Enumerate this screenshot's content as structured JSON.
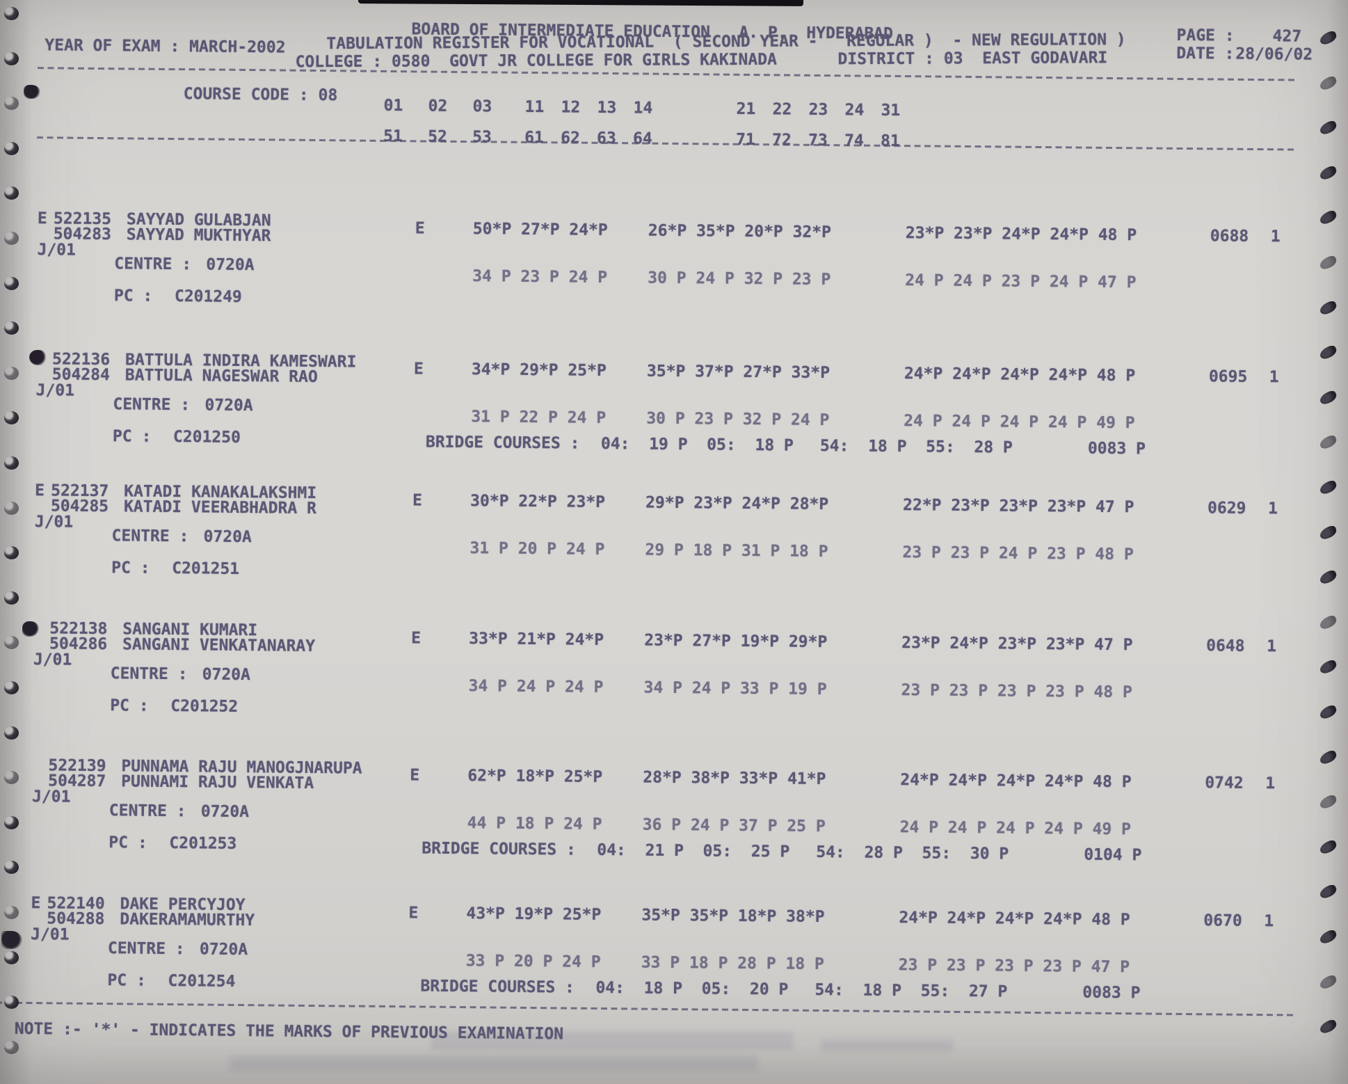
{
  "header": {
    "board_title": "BOARD OF INTERMEDIATE EDUCATION   A. P.  HYDERABAD",
    "page_label": "PAGE :",
    "page_value": "427",
    "year_line": "YEAR OF EXAM : MARCH-2002",
    "register_line": "TABULATION REGISTER FOR VOCATIONAL  ( SECOND YEAR -   REGULAR )  - NEW REGULATION )",
    "date_label": "DATE :",
    "date_value": "28/06/02",
    "college_line": "COLLEGE : 0580  GOVT JR COLLEGE FOR GIRLS KAKINADA",
    "district_line": "DISTRICT : 03  EAST GODAVARI",
    "course_code_line": "COURSE CODE : 08",
    "subjects_row1": [
      "01",
      "02",
      "03",
      "11",
      "12",
      "13",
      "14",
      "21",
      "22",
      "23",
      "24",
      "31"
    ],
    "subjects_row2": [
      "51",
      "52",
      "53",
      "61",
      "62",
      "63",
      "64",
      "71",
      "72",
      "73",
      "74",
      "81"
    ]
  },
  "records": [
    {
      "flag": "E",
      "hall_ticket": "522135",
      "name": "SAYYAD GULABJAN",
      "alt_no": "504283",
      "father_name": "SAYYAD MUKTHYAR",
      "code": "J/01",
      "centre_label": "CENTRE :",
      "centre": "0720A",
      "pc_label": "PC :",
      "pc": "C201249",
      "medium": "E",
      "marks1_g1": "50*P 27*P 24*P",
      "marks1_g2": "26*P 35*P 20*P 32*P",
      "marks1_g3": "23*P 23*P 24*P 24*P 48 P",
      "total": "0688",
      "result": "1",
      "marks2_g1": "34 P 23 P 24 P",
      "marks2_g2": "30 P 24 P 32 P 23 P",
      "marks2_g3": "24 P 24 P 23 P 24 P 47 P",
      "bridge": null
    },
    {
      "flag": "",
      "hall_ticket": "522136",
      "name": "BATTULA INDIRA KAMESWARI",
      "alt_no": "504284",
      "father_name": "BATTULA NAGESWAR RAO",
      "code": "J/01",
      "centre_label": "CENTRE :",
      "centre": "0720A",
      "pc_label": "PC :",
      "pc": "C201250",
      "medium": "E",
      "marks1_g1": "34*P 29*P 25*P",
      "marks1_g2": "35*P 37*P 27*P 33*P",
      "marks1_g3": "24*P 24*P 24*P 24*P 48 P",
      "total": "0695",
      "result": "1",
      "marks2_g1": "31 P 22 P 24 P",
      "marks2_g2": "30 P 23 P 32 P 24 P",
      "marks2_g3": "24 P 24 P 24 P 24 P 49 P",
      "bridge": {
        "label": "BRIDGE COURSES :",
        "seg1": "04:  19 P  05:  18 P",
        "seg2": "54:  18 P  55:  28 P",
        "total": "0083 P"
      }
    },
    {
      "flag": "E",
      "hall_ticket": "522137",
      "name": "KATADI KANAKALAKSHMI",
      "alt_no": "504285",
      "father_name": "KATADI VEERABHADRA R",
      "code": "J/01",
      "centre_label": "CENTRE :",
      "centre": "0720A",
      "pc_label": "PC :",
      "pc": "C201251",
      "medium": "E",
      "marks1_g1": "30*P 22*P 23*P",
      "marks1_g2": "29*P 23*P 24*P 28*P",
      "marks1_g3": "22*P 23*P 23*P 23*P 47 P",
      "total": "0629",
      "result": "1",
      "marks2_g1": "31 P 20 P 24 P",
      "marks2_g2": "29 P 18 P 31 P 18 P",
      "marks2_g3": "23 P 23 P 24 P 23 P 48 P",
      "bridge": null
    },
    {
      "flag": "",
      "hall_ticket": "522138",
      "name": "SANGANI KUMARI",
      "alt_no": "504286",
      "father_name": "SANGANI VENKATANARAY",
      "code": "J/01",
      "centre_label": "CENTRE :",
      "centre": "0720A",
      "pc_label": "PC :",
      "pc": "C201252",
      "medium": "E",
      "marks1_g1": "33*P 21*P 24*P",
      "marks1_g2": "23*P 27*P 19*P 29*P",
      "marks1_g3": "23*P 24*P 23*P 23*P 47 P",
      "total": "0648",
      "result": "1",
      "marks2_g1": "34 P 24 P 24 P",
      "marks2_g2": "34 P 24 P 33 P 19 P",
      "marks2_g3": "23 P 23 P 23 P 23 P 48 P",
      "bridge": null
    },
    {
      "flag": "",
      "hall_ticket": "522139",
      "name": "PUNNAMA RAJU MANOGJNARUPA",
      "alt_no": "504287",
      "father_name": "PUNNAMI RAJU VENKATA",
      "code": "J/01",
      "centre_label": "CENTRE :",
      "centre": "0720A",
      "pc_label": "PC :",
      "pc": "C201253",
      "medium": "E",
      "marks1_g1": "62*P 18*P 25*P",
      "marks1_g2": "28*P 38*P 33*P 41*P",
      "marks1_g3": "24*P 24*P 24*P 24*P 48 P",
      "total": "0742",
      "result": "1",
      "marks2_g1": "44 P 18 P 24 P",
      "marks2_g2": "36 P 24 P 37 P 25 P",
      "marks2_g3": "24 P 24 P 24 P 24 P 49 P",
      "bridge": {
        "label": "BRIDGE COURSES :",
        "seg1": "04:  21 P  05:  25 P",
        "seg2": "54:  28 P  55:  30 P",
        "total": "0104 P"
      }
    },
    {
      "flag": "E",
      "hall_ticket": "522140",
      "name": "DAKE PERCYJOY",
      "alt_no": "504288",
      "father_name": "DAKERAMAMURTHY",
      "code": "J/01",
      "centre_label": "CENTRE :",
      "centre": "0720A",
      "pc_label": "PC :",
      "pc": "C201254",
      "medium": "E",
      "marks1_g1": "43*P 19*P 25*P",
      "marks1_g2": "35*P 35*P 18*P 38*P",
      "marks1_g3": "24*P 24*P 24*P 24*P 48 P",
      "total": "0670",
      "result": "1",
      "marks2_g1": "33 P 20 P 24 P",
      "marks2_g2": "33 P 18 P 28 P 18 P",
      "marks2_g3": "23 P 23 P 23 P 23 P 47 P",
      "bridge": {
        "label": "BRIDGE COURSES :",
        "seg1": "04:  18 P  05:  20 P",
        "seg2": "54:  18 P  55:  27 P",
        "total": "0083 P"
      }
    }
  ],
  "note_line": "NOTE :- '*' - INDICATES THE MARKS OF PREVIOUS EXAMINATION"
}
